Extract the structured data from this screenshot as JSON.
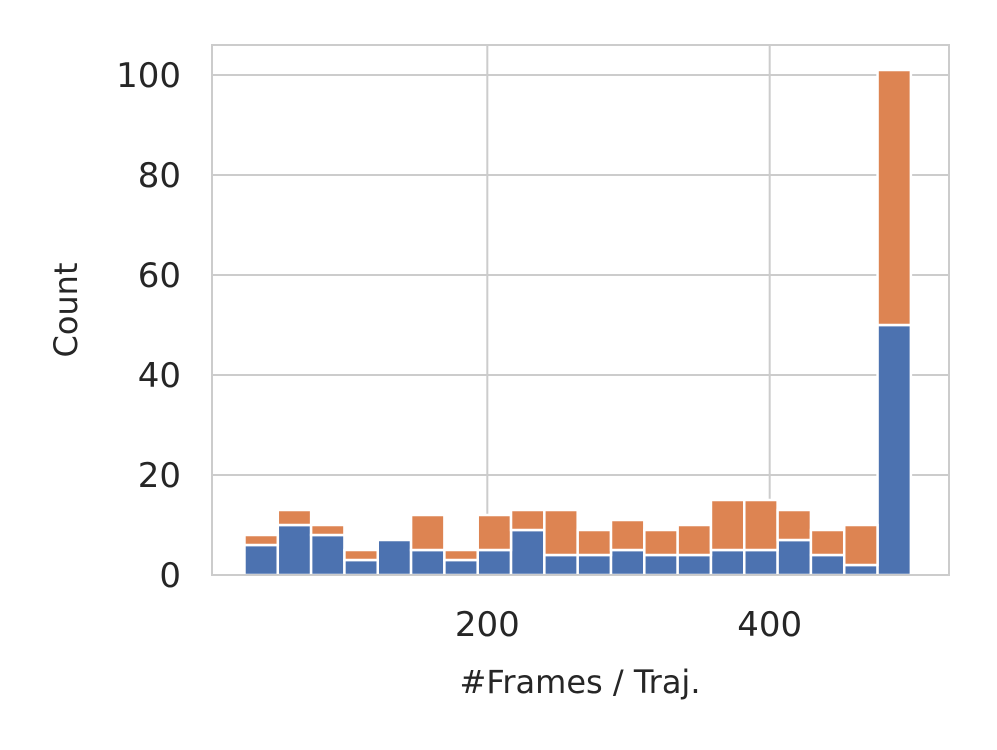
{
  "chart_data": {
    "type": "bar",
    "stacked": true,
    "xlabel": "#Frames / Traj.",
    "ylabel": "Count",
    "xlim": [
      5,
      527
    ],
    "ylim": [
      0,
      106
    ],
    "xticks": [
      200,
      400
    ],
    "yticks": [
      0,
      20,
      40,
      60,
      80,
      100
    ],
    "grid": true,
    "bin_edges": [
      28,
      51.6,
      75.2,
      98.8,
      122.4,
      146,
      169.6,
      193.2,
      216.8,
      240.4,
      264,
      287.6,
      311.2,
      334.8,
      358.4,
      382,
      405.6,
      429.2,
      452.8,
      476.4,
      500
    ],
    "series": [
      {
        "color": "#4c72b0",
        "values": [
          6,
          10,
          8,
          3,
          7,
          5,
          3,
          5,
          9,
          4,
          4,
          5,
          4,
          4,
          5,
          5,
          7,
          4,
          2,
          50
        ]
      },
      {
        "color": "#dd8452",
        "values": [
          2,
          3,
          2,
          2,
          0,
          7,
          2,
          7,
          4,
          9,
          5,
          6,
          5,
          6,
          10,
          10,
          6,
          5,
          8,
          51
        ]
      }
    ]
  }
}
